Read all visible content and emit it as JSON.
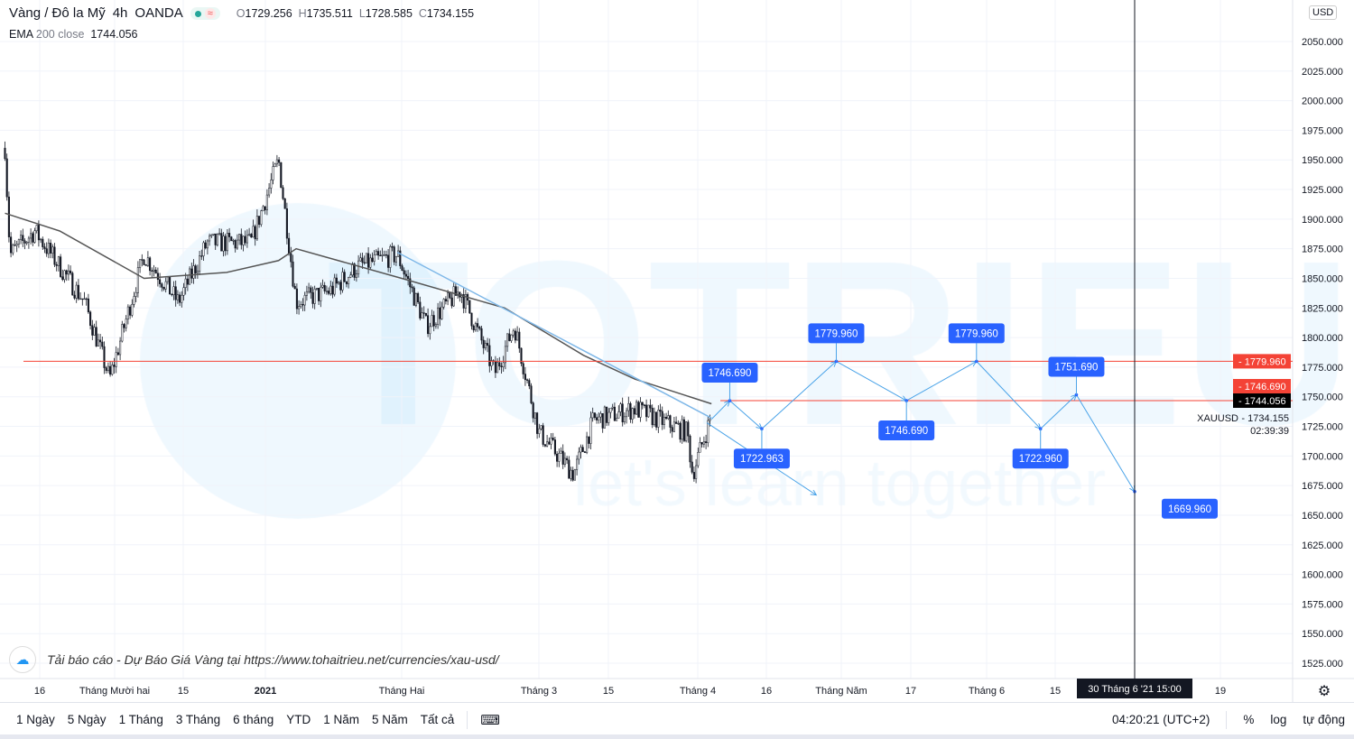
{
  "header": {
    "symbol": "Vàng / Đô la Mỹ",
    "interval": "4h",
    "exchange": "OANDA",
    "status_dot_color": "#26a69a",
    "approx_icon": "≈",
    "ohlc": {
      "o_label": "O",
      "o": "1729.256",
      "h_label": "H",
      "h": "1735.511",
      "l_label": "L",
      "l": "1728.585",
      "c_label": "C",
      "c": "1734.155"
    },
    "ema": {
      "name": "EMA",
      "params": "200 close",
      "value": "1744.056"
    }
  },
  "currency_button": "USD",
  "watermark": {
    "brand": "TOTRIEU",
    "slogan": "let's learn together"
  },
  "note": {
    "text": "Tải báo cáo - Dự Báo Giá Vàng tại https://www.tohaitrieu.net/currencies/xau-usd/"
  },
  "chart_data": {
    "type": "candlestick",
    "symbol": "XAUUSD",
    "ylim": [
      1512,
      2062
    ],
    "yticks": [
      "1525.000",
      "1550.000",
      "1575.000",
      "1600.000",
      "1625.000",
      "1650.000",
      "1675.000",
      "1700.000",
      "1725.000",
      "1750.000",
      "1775.000",
      "1800.000",
      "1825.000",
      "1850.000",
      "1875.000",
      "1900.000",
      "1925.000",
      "1950.000",
      "1975.000",
      "2000.000",
      "2025.000",
      "2050.000"
    ],
    "xticks": [
      {
        "date": "2020-11-16",
        "label": "16"
      },
      {
        "date": "2020-12-01",
        "label": "Tháng Mười hai"
      },
      {
        "date": "2020-12-15",
        "label": "15"
      },
      {
        "date": "2021-01-01",
        "label": "2021",
        "bold": true
      },
      {
        "date": "2021-02-01",
        "label": "Tháng Hai"
      },
      {
        "date": "2021-03-01",
        "label": "Tháng 3"
      },
      {
        "date": "2021-03-15",
        "label": "15"
      },
      {
        "date": "2021-04-01",
        "label": "Tháng 4"
      },
      {
        "date": "2021-04-16",
        "label": "16"
      },
      {
        "date": "2021-05-01",
        "label": "Tháng Năm"
      },
      {
        "date": "2021-05-17",
        "label": "17"
      },
      {
        "date": "2021-06-01",
        "label": "Tháng 6"
      },
      {
        "date": "2021-06-15",
        "label": "15"
      },
      {
        "date": "2021-07-19",
        "label": "19"
      }
    ],
    "price_path": [
      [
        "2020-11-09",
        1960
      ],
      [
        "2020-11-10",
        1870
      ],
      [
        "2020-11-15",
        1890
      ],
      [
        "2020-11-25",
        1830
      ],
      [
        "2020-11-30",
        1765
      ],
      [
        "2020-12-07",
        1870
      ],
      [
        "2020-12-14",
        1830
      ],
      [
        "2020-12-20",
        1880
      ],
      [
        "2020-12-29",
        1880
      ],
      [
        "2021-01-04",
        1950
      ],
      [
        "2021-01-08",
        1830
      ],
      [
        "2021-01-16",
        1840
      ],
      [
        "2021-01-22",
        1860
      ],
      [
        "2021-01-31",
        1870
      ],
      [
        "2021-02-06",
        1810
      ],
      [
        "2021-02-13",
        1840
      ],
      [
        "2021-02-20",
        1770
      ],
      [
        "2021-02-24",
        1810
      ],
      [
        "2021-03-01",
        1720
      ],
      [
        "2021-03-08",
        1685
      ],
      [
        "2021-03-12",
        1730
      ],
      [
        "2021-03-20",
        1740
      ],
      [
        "2021-03-30",
        1720
      ],
      [
        "2021-03-31",
        1685
      ],
      [
        "2021-04-04",
        1734.155
      ]
    ],
    "ema_path": [
      [
        "2020-11-09",
        1905
      ],
      [
        "2020-11-20",
        1890
      ],
      [
        "2020-12-07",
        1850
      ],
      [
        "2020-12-24",
        1855
      ],
      [
        "2021-01-04",
        1865
      ],
      [
        "2021-01-08",
        1875
      ],
      [
        "2021-02-01",
        1850
      ],
      [
        "2021-02-22",
        1825
      ],
      [
        "2021-03-10",
        1785
      ],
      [
        "2021-03-20",
        1765
      ],
      [
        "2021-04-04",
        1744.056
      ]
    ],
    "horizontal_lines": [
      {
        "price": 1779.96,
        "label": "1779.960",
        "color": "#f44336"
      },
      {
        "price": 1746.69,
        "label": "1746.690",
        "color": "#f44336"
      }
    ],
    "price_labels": [
      {
        "label": "1779.960",
        "bg": "#f44336"
      },
      {
        "label": "1746.690",
        "bg": "#f44336"
      },
      {
        "label": "1744.056",
        "bg": "#000000"
      }
    ],
    "last_price": {
      "symbol": "XAUUSD",
      "value": "1734.155",
      "countdown": "02:39:39"
    },
    "trendline": [
      [
        "2021-01-31",
        1872
      ],
      [
        "2021-04-04",
        1732
      ]
    ],
    "projection_path": [
      {
        "date": "2021-04-04",
        "price": 1731
      },
      {
        "date": "2021-04-08",
        "price": 1746.69,
        "label": "1746.690",
        "pos": "above"
      },
      {
        "date": "2021-04-15",
        "price": 1722.963,
        "label": "1722.963",
        "pos": "below"
      },
      {
        "date": "2021-04-30",
        "price": 1779.96,
        "label": "1779.960",
        "pos": "above"
      },
      {
        "date": "2021-05-16",
        "price": 1746.69,
        "label": "1746.690",
        "pos": "below"
      },
      {
        "date": "2021-05-30",
        "price": 1779.96,
        "label": "1779.960",
        "pos": "above"
      },
      {
        "date": "2021-06-12",
        "price": 1722.96,
        "label": "1722.960",
        "pos": "below"
      },
      {
        "date": "2021-06-19",
        "price": 1751.69,
        "label": "1751.690",
        "pos": "above"
      },
      {
        "date": "2021-06-30",
        "price": 1669.96,
        "label": "1669.960",
        "pos": "below-right"
      }
    ],
    "alt_projection": [
      [
        "2021-04-03",
        1728
      ],
      [
        "2021-04-26",
        1667
      ]
    ],
    "crosshair": {
      "date": "2021-06-30",
      "label": "30 Tháng 6 '21   15:00"
    },
    "colors": {
      "up": "#131722",
      "down": "#131722",
      "ema": "#555555",
      "trend": "#7fb8e8",
      "projection": "#4aa3e8",
      "label_bg": "#2962ff"
    }
  },
  "bottombar": {
    "ranges": [
      "1 Ngày",
      "5 Ngày",
      "1 Tháng",
      "3 Tháng",
      "6 tháng",
      "YTD",
      "1 Năm",
      "5 Năm",
      "Tất cả"
    ],
    "compare_icon": "calendar-range-icon",
    "clock": "04:20:21 (UTC+2)",
    "percent": "%",
    "log": "log",
    "auto": "tự động",
    "settings_icon": "gear-icon"
  }
}
